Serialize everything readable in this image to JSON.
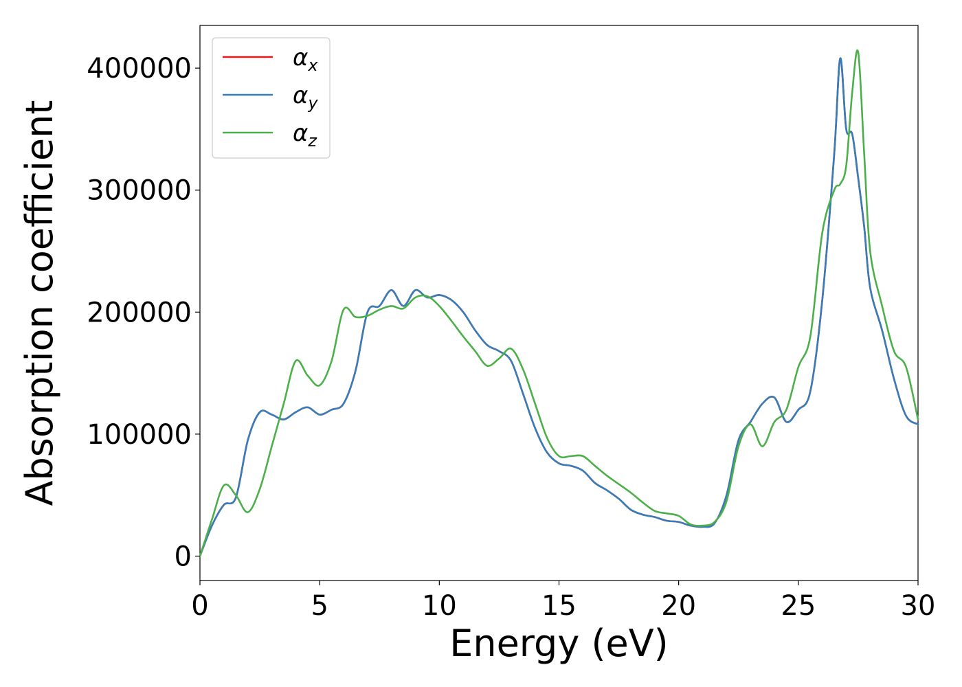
{
  "chart_data": {
    "type": "line",
    "title": "",
    "xlabel": "Energy (eV)",
    "ylabel": "Absorption coefficient",
    "xlim": [
      0,
      30
    ],
    "ylim": [
      -20000,
      435000
    ],
    "xticks": [
      0,
      5,
      10,
      15,
      20,
      25,
      30
    ],
    "xtick_labels": [
      "0",
      "5",
      "10",
      "15",
      "20",
      "25",
      "30"
    ],
    "yticks": [
      0,
      100000,
      200000,
      300000,
      400000
    ],
    "ytick_labels": [
      "0",
      "100000",
      "200000",
      "300000",
      "400000"
    ],
    "grid": false,
    "legend_position": "top-left",
    "colors": {
      "alpha_x": "#e41a1c",
      "alpha_y": "#377eb8",
      "alpha_z": "#4daf4a"
    },
    "x": [
      0,
      0.5,
      1.0,
      1.5,
      2.0,
      2.5,
      3.0,
      3.5,
      4.0,
      4.5,
      5.0,
      5.5,
      6.0,
      6.5,
      7.0,
      7.5,
      8.0,
      8.5,
      9.0,
      9.5,
      10.0,
      10.5,
      11.0,
      11.5,
      12.0,
      12.5,
      13.0,
      13.5,
      14.0,
      14.5,
      15.0,
      15.5,
      16.0,
      16.5,
      17.0,
      17.5,
      18.0,
      18.5,
      19.0,
      19.5,
      20.0,
      20.5,
      21.0,
      21.5,
      22.0,
      22.5,
      23.0,
      23.5,
      24.0,
      24.5,
      25.0,
      25.5,
      26.0,
      26.5,
      26.75,
      27.0,
      27.25,
      27.5,
      27.75,
      28.0,
      28.5,
      29.0,
      29.5,
      30.0
    ],
    "series": [
      {
        "name": "α_x",
        "label_main": "α",
        "label_sub": "x",
        "values": [
          0,
          25000,
          42000,
          48000,
          95000,
          118000,
          116000,
          112000,
          118000,
          122000,
          116000,
          120000,
          125000,
          152000,
          200000,
          205000,
          218000,
          205000,
          218000,
          212000,
          214000,
          210000,
          200000,
          185000,
          173000,
          168000,
          160000,
          133000,
          105000,
          85000,
          76000,
          74000,
          70000,
          60000,
          54000,
          47000,
          38000,
          34000,
          32000,
          29000,
          28000,
          25000,
          24000,
          27000,
          50000,
          95000,
          110000,
          125000,
          130000,
          110000,
          120000,
          135000,
          210000,
          330000,
          408000,
          350000,
          346000,
          310000,
          270000,
          220000,
          185000,
          145000,
          115000,
          108000
        ]
      },
      {
        "name": "α_y",
        "label_main": "α",
        "label_sub": "y",
        "values": [
          0,
          25000,
          42000,
          48000,
          95000,
          118000,
          116000,
          112000,
          118000,
          122000,
          116000,
          120000,
          125000,
          152000,
          200000,
          205000,
          218000,
          205000,
          218000,
          212000,
          214000,
          210000,
          200000,
          185000,
          173000,
          168000,
          160000,
          133000,
          105000,
          85000,
          76000,
          74000,
          70000,
          60000,
          54000,
          47000,
          38000,
          34000,
          32000,
          29000,
          28000,
          25000,
          24000,
          27000,
          50000,
          95000,
          110000,
          125000,
          130000,
          110000,
          120000,
          135000,
          210000,
          330000,
          408000,
          350000,
          346000,
          310000,
          270000,
          220000,
          185000,
          145000,
          115000,
          108000
        ]
      },
      {
        "name": "α_z",
        "label_main": "α",
        "label_sub": "z",
        "values": [
          0,
          30000,
          58000,
          50000,
          36000,
          55000,
          90000,
          125000,
          160000,
          148000,
          140000,
          160000,
          202000,
          196000,
          197000,
          202000,
          205000,
          203000,
          212000,
          213000,
          205000,
          193000,
          180000,
          168000,
          156000,
          162000,
          170000,
          153000,
          125000,
          97000,
          82000,
          82000,
          82000,
          74000,
          66000,
          59000,
          52000,
          44000,
          37000,
          35000,
          33000,
          26000,
          25000,
          28000,
          45000,
          90000,
          108000,
          90000,
          110000,
          120000,
          155000,
          180000,
          265000,
          300000,
          305000,
          320000,
          380000,
          413000,
          330000,
          250000,
          205000,
          168000,
          155000,
          112000
        ]
      }
    ]
  }
}
